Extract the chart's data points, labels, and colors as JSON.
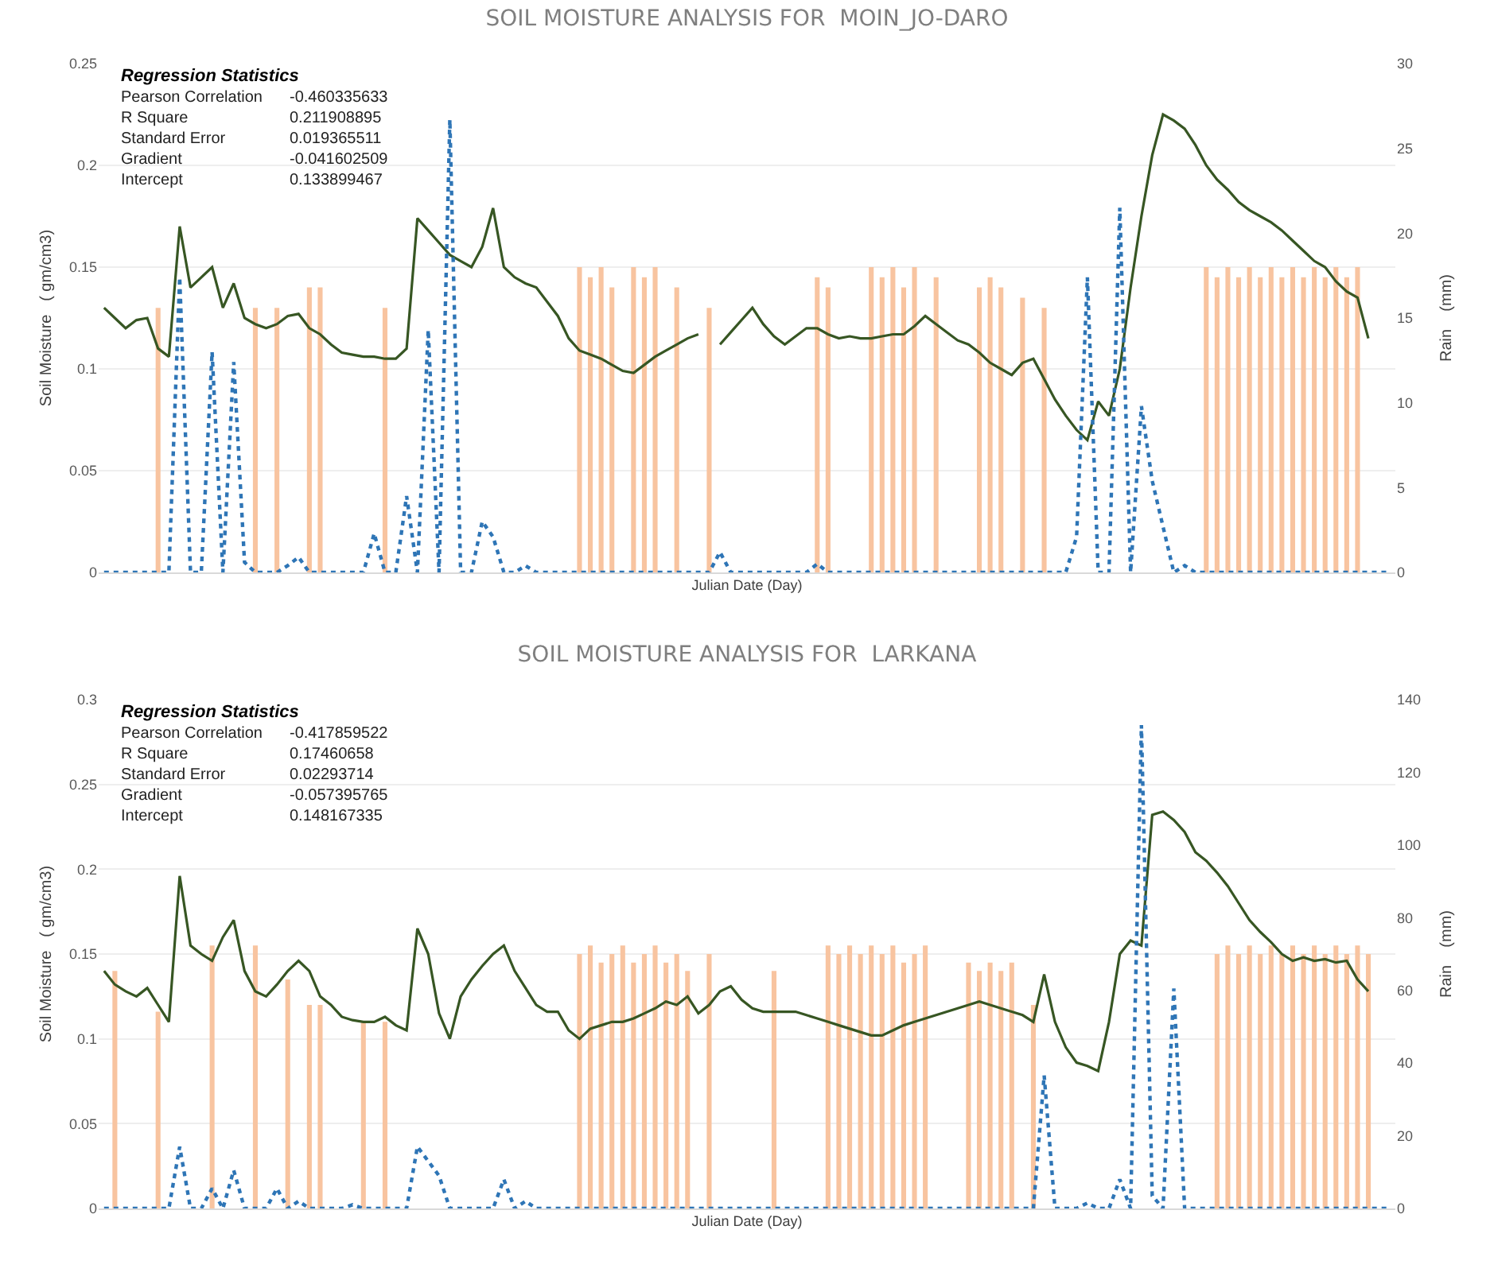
{
  "chart_data": [
    {
      "type": "bar",
      "title": "SOIL MOISTURE ANALYSIS FOR  MOIN_JO-DARO",
      "xlabel": "Julian Date (Day)",
      "ylabel": "Soil Moisture   ( gm/cm3)",
      "y2label": "Rain    (mm)",
      "annotations": [
        "Regression Statistics",
        "Pearson Correlation",
        "-0.460335633",
        "R Square",
        "0.211908895",
        "Standard Error",
        "0.019365511",
        "Gradient",
        "-0.041602509",
        "Intercept",
        "0.133899467"
      ],
      "categories": [
        null,
        null,
        null,
        null,
        null,
        null,
        null,
        null,
        null,
        null,
        null,
        null,
        null,
        null,
        null,
        null,
        null,
        null,
        null,
        null,
        null,
        null,
        null,
        null,
        null,
        null,
        null,
        null,
        null,
        null,
        null,
        null,
        null,
        null,
        null,
        null,
        null,
        null,
        null,
        null,
        null,
        null,
        null,
        null,
        null,
        null,
        null,
        null,
        null,
        null,
        null,
        null,
        null,
        null,
        null,
        null,
        null,
        null,
        null,
        null,
        null,
        null,
        null,
        null,
        null,
        null,
        null,
        null,
        null,
        null,
        null,
        null,
        null,
        null,
        null,
        null,
        null,
        null,
        null,
        null,
        null,
        null,
        null,
        null,
        null,
        null,
        null,
        null,
        null,
        null,
        null,
        null,
        null,
        null,
        null,
        null,
        null,
        null,
        null,
        null,
        null,
        null,
        null,
        null,
        null,
        null,
        null,
        null,
        null,
        null,
        null,
        null,
        null,
        null,
        null,
        null,
        null,
        null,
        null,
        null
      ],
      "series": [
        {
          "color": "#f8c4a0",
          "values": [
            null,
            null,
            null,
            null,
            null,
            0.13,
            null,
            null,
            null,
            null,
            null,
            null,
            null,
            null,
            0.13,
            null,
            0.13,
            null,
            null,
            0.14,
            0.14,
            null,
            null,
            null,
            null,
            null,
            0.13,
            null,
            null,
            null,
            null,
            null,
            null,
            null,
            null,
            null,
            null,
            null,
            null,
            null,
            null,
            null,
            null,
            null,
            0.15,
            0.145,
            0.15,
            0.14,
            null,
            0.15,
            0.145,
            0.15,
            null,
            0.14,
            null,
            null,
            0.13,
            null,
            null,
            null,
            null,
            null,
            null,
            null,
            null,
            null,
            0.145,
            0.14,
            null,
            null,
            null,
            0.15,
            0.145,
            0.15,
            0.14,
            0.15,
            null,
            0.145,
            null,
            null,
            null,
            0.14,
            0.145,
            0.14,
            null,
            0.135,
            null,
            0.13,
            null,
            null,
            null,
            null,
            null,
            null,
            null,
            null,
            null,
            null,
            null,
            null,
            null,
            null,
            0.15,
            0.145,
            0.15,
            0.145,
            0.15,
            0.145,
            0.15,
            0.145,
            0.15,
            0.145,
            0.15,
            0.145,
            0.15,
            0.145,
            0.15,
            null,
            null,
            null
          ]
        },
        {
          "type": "line",
          "color": "#375623",
          "line_style": "solid",
          "values": [
            0.13,
            0.125,
            0.12,
            0.124,
            0.125,
            0.11,
            0.106,
            0.17,
            0.14,
            0.145,
            0.15,
            0.13,
            0.142,
            0.125,
            0.122,
            0.12,
            0.122,
            0.126,
            0.127,
            0.12,
            0.117,
            0.112,
            0.108,
            0.107,
            0.106,
            0.106,
            0.105,
            0.105,
            0.11,
            0.174,
            0.168,
            0.162,
            0.156,
            0.153,
            0.15,
            0.16,
            0.179,
            0.15,
            0.145,
            0.142,
            0.14,
            0.133,
            0.126,
            0.115,
            0.109,
            0.107,
            0.105,
            0.102,
            0.099,
            0.098,
            0.102,
            0.106,
            0.109,
            0.112,
            0.115,
            0.117,
            null,
            0.112,
            0.118,
            0.124,
            0.13,
            0.122,
            0.116,
            0.112,
            0.116,
            0.12,
            0.12,
            0.117,
            0.115,
            0.116,
            0.115,
            0.115,
            0.116,
            0.117,
            0.117,
            0.121,
            0.126,
            0.122,
            0.118,
            0.114,
            0.112,
            0.108,
            0.103,
            0.1,
            0.097,
            0.103,
            0.105,
            0.095,
            0.085,
            0.077,
            0.07,
            0.065,
            0.084,
            0.077,
            0.1,
            0.14,
            0.175,
            0.205,
            0.225,
            0.222,
            0.218,
            0.21,
            0.2,
            0.193,
            0.188,
            0.182,
            0.178,
            0.175,
            0.172,
            0.168,
            0.163,
            0.158,
            0.153,
            0.15,
            0.143,
            0.138,
            0.135,
            0.115,
            null,
            null
          ]
        },
        {
          "type": "line",
          "axis": "y2",
          "color": "#2e75b6",
          "line_style": "dotted",
          "values": [
            0,
            0,
            0,
            0,
            0,
            0,
            0,
            17.4,
            0,
            0,
            13,
            0,
            12.4,
            0.6,
            0,
            0,
            0,
            0.4,
            0.9,
            0,
            0,
            0,
            0,
            0,
            0,
            2.3,
            0,
            0,
            4.5,
            0,
            14.3,
            0,
            26.7,
            0,
            0,
            3,
            2.1,
            0,
            0,
            0.4,
            0,
            0,
            0,
            0,
            0,
            0,
            0,
            0,
            0,
            0,
            0,
            0,
            0,
            0,
            0,
            0,
            0,
            1.2,
            0,
            0,
            0,
            0,
            0,
            0,
            0,
            0,
            0.5,
            0,
            0,
            0,
            0,
            0,
            0,
            0,
            0,
            0,
            0,
            0,
            0,
            0,
            0,
            0,
            0,
            0,
            0,
            0,
            0,
            0,
            0,
            0,
            2.1,
            17.4,
            0,
            0,
            21.5,
            0,
            9.8,
            5.4,
            2.7,
            0,
            0.4,
            0,
            0,
            0,
            0,
            0,
            0,
            0,
            0,
            0,
            0,
            0,
            0,
            0,
            0,
            0,
            0,
            0,
            0,
            0
          ]
        }
      ],
      "ylim": [
        0,
        0.25
      ],
      "yticks": [
        0,
        0.05,
        0.1,
        0.15,
        0.2,
        0.25
      ],
      "y2lim": [
        0,
        30
      ],
      "y2ticks": [
        0,
        5,
        10,
        15,
        20,
        25,
        30
      ],
      "grid": "y",
      "tick_labels": "y"
    },
    {
      "type": "bar",
      "title": "SOIL MOISTURE ANALYSIS FOR  LARKANA",
      "xlabel": "Julian Date (Day)",
      "ylabel": "Soil Moisture   ( gm/cm3)",
      "y2label": "Rain    (mm)",
      "annotations": [
        "Regression Statistics",
        "Pearson Correlation",
        "-0.417859522",
        "R Square",
        "0.17460658",
        "Standard Error",
        "0.02293714",
        "Gradient",
        "-0.057395765",
        "Intercept",
        "0.148167335"
      ],
      "categories": [
        null,
        null,
        null,
        null,
        null,
        null,
        null,
        null,
        null,
        null,
        null,
        null,
        null,
        null,
        null,
        null,
        null,
        null,
        null,
        null,
        null,
        null,
        null,
        null,
        null,
        null,
        null,
        null,
        null,
        null,
        null,
        null,
        null,
        null,
        null,
        null,
        null,
        null,
        null,
        null,
        null,
        null,
        null,
        null,
        null,
        null,
        null,
        null,
        null,
        null,
        null,
        null,
        null,
        null,
        null,
        null,
        null,
        null,
        null,
        null,
        null,
        null,
        null,
        null,
        null,
        null,
        null,
        null,
        null,
        null,
        null,
        null,
        null,
        null,
        null,
        null,
        null,
        null,
        null,
        null,
        null,
        null,
        null,
        null,
        null,
        null,
        null,
        null,
        null,
        null,
        null,
        null,
        null,
        null,
        null,
        null,
        null,
        null,
        null,
        null,
        null,
        null,
        null,
        null,
        null,
        null,
        null,
        null,
        null,
        null,
        null,
        null,
        null,
        null,
        null,
        null,
        null,
        null,
        null,
        null
      ],
      "series": [
        {
          "color": "#f8c4a0",
          "values": [
            null,
            0.14,
            null,
            null,
            null,
            0.116,
            null,
            null,
            null,
            null,
            0.155,
            null,
            null,
            null,
            0.155,
            null,
            null,
            0.135,
            null,
            0.12,
            0.12,
            null,
            null,
            null,
            0.11,
            null,
            0.11,
            null,
            null,
            null,
            null,
            null,
            null,
            null,
            null,
            null,
            null,
            null,
            null,
            null,
            null,
            null,
            null,
            null,
            0.15,
            0.155,
            0.145,
            0.15,
            0.155,
            0.145,
            0.15,
            0.155,
            0.145,
            0.15,
            0.14,
            null,
            0.15,
            null,
            null,
            null,
            null,
            null,
            0.14,
            null,
            null,
            null,
            null,
            0.155,
            0.15,
            0.155,
            0.15,
            0.155,
            0.15,
            0.155,
            0.145,
            0.15,
            0.155,
            null,
            null,
            null,
            0.145,
            0.14,
            0.145,
            0.14,
            0.145,
            null,
            0.12,
            null,
            null,
            null,
            null,
            null,
            null,
            null,
            null,
            null,
            null,
            null,
            null,
            null,
            null,
            null,
            null,
            0.15,
            0.155,
            0.15,
            0.155,
            0.15,
            0.155,
            0.15,
            0.155,
            0.15,
            0.155,
            0.15,
            0.155,
            0.15,
            0.155,
            0.15,
            null,
            null
          ]
        },
        {
          "type": "line",
          "color": "#375623",
          "line_style": "solid",
          "values": [
            0.14,
            0.132,
            0.128,
            0.125,
            0.13,
            0.12,
            0.11,
            0.196,
            0.155,
            0.15,
            0.146,
            0.16,
            0.17,
            0.14,
            0.128,
            0.125,
            0.132,
            0.14,
            0.146,
            0.14,
            0.125,
            0.12,
            0.113,
            0.111,
            0.11,
            0.11,
            0.113,
            0.108,
            0.105,
            0.165,
            0.15,
            0.115,
            0.1,
            0.125,
            0.135,
            0.143,
            0.15,
            0.155,
            0.14,
            0.13,
            0.12,
            0.116,
            0.116,
            0.105,
            0.1,
            0.106,
            0.108,
            0.11,
            0.11,
            0.112,
            0.115,
            0.118,
            0.122,
            0.12,
            0.125,
            0.115,
            0.12,
            0.128,
            0.131,
            0.123,
            0.118,
            0.116,
            0.116,
            0.116,
            0.116,
            0.114,
            0.112,
            0.11,
            0.108,
            0.106,
            0.104,
            0.102,
            0.102,
            0.105,
            0.108,
            0.11,
            0.112,
            0.114,
            0.116,
            0.118,
            0.12,
            0.122,
            0.12,
            0.118,
            0.116,
            0.114,
            0.11,
            0.138,
            0.11,
            0.095,
            0.086,
            0.084,
            0.081,
            0.11,
            0.15,
            0.158,
            0.155,
            0.232,
            0.234,
            0.229,
            0.222,
            0.21,
            0.205,
            0.198,
            0.19,
            0.18,
            0.17,
            0.163,
            0.157,
            0.15,
            0.146,
            0.148,
            0.146,
            0.147,
            0.145,
            0.146,
            0.135,
            0.128,
            null,
            null
          ]
        },
        {
          "type": "line",
          "axis": "y2",
          "color": "#2e75b6",
          "line_style": "dotted",
          "values": [
            0,
            0,
            0,
            0,
            0,
            0,
            0,
            17,
            0,
            0,
            5.5,
            0,
            10.5,
            0,
            0,
            0,
            5.5,
            0,
            2,
            0,
            0,
            0,
            0,
            1,
            0,
            0,
            0,
            0,
            0,
            17,
            13,
            9,
            0,
            0,
            0,
            0,
            0,
            8,
            0,
            2,
            0,
            0,
            0,
            0,
            0,
            0,
            0,
            0,
            0,
            0,
            0,
            0,
            0,
            0,
            0,
            0,
            0,
            0,
            0,
            0,
            0,
            0,
            0,
            0,
            0,
            0,
            0,
            0,
            0,
            0,
            0,
            0,
            0,
            0,
            0,
            0,
            0,
            0,
            0,
            0,
            0,
            0,
            0,
            0,
            0,
            0,
            0,
            36.6,
            0,
            0,
            0,
            1.5,
            0,
            0,
            8,
            0,
            133,
            3.5,
            0,
            60.5,
            0,
            0,
            0,
            0,
            0,
            0,
            0,
            0,
            0,
            0,
            0,
            0,
            0,
            0,
            0,
            0,
            0,
            0,
            0,
            0
          ]
        }
      ],
      "ylim": [
        0,
        0.3
      ],
      "yticks": [
        0,
        0.05,
        0.1,
        0.15,
        0.2,
        0.25,
        0.3
      ],
      "y2lim": [
        0,
        140
      ],
      "y2ticks": [
        0,
        20,
        40,
        60,
        80,
        100,
        120,
        140
      ],
      "grid": "y",
      "tick_labels": "y"
    }
  ]
}
